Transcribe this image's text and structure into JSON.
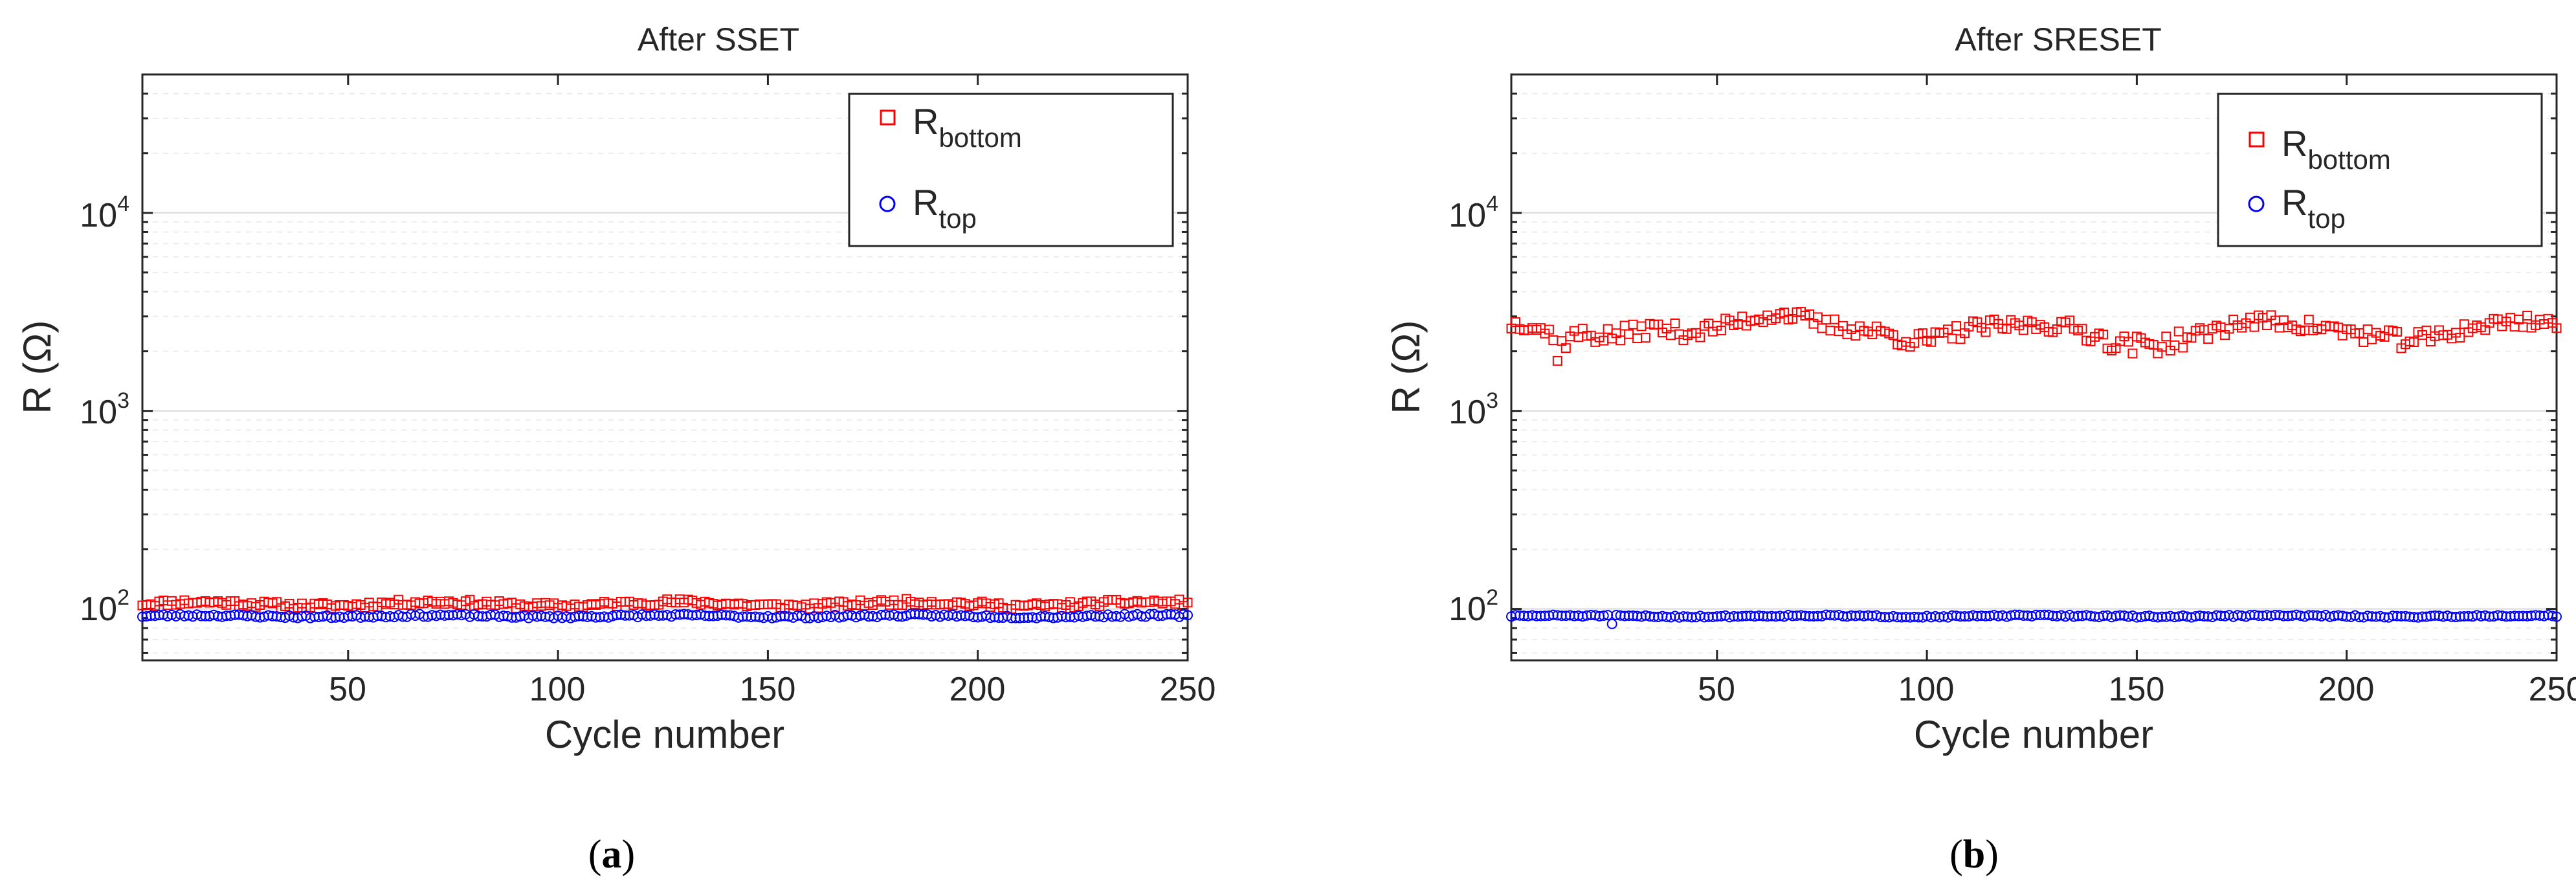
{
  "figure": {
    "panels": [
      {
        "label_open": "(",
        "label": "a",
        "label_close": ")"
      },
      {
        "label_open": "(",
        "label": "b",
        "label_close": ")"
      }
    ]
  },
  "colors": {
    "bottom": "#ff0000",
    "top": "#0000ff",
    "grid": "#d9d9d9",
    "minor_grid": "#ececec",
    "axis": "#262626",
    "text": "#262626"
  },
  "chart_data": [
    {
      "type": "scatter",
      "title": "After SSET",
      "xlabel": "Cycle number",
      "ylabel": "R (Ω)",
      "xscale": "linear",
      "yscale": "log",
      "xlim": [
        1,
        250
      ],
      "ylim": [
        55,
        50000
      ],
      "xticks": [
        50,
        100,
        150,
        200,
        250
      ],
      "xtick_labels": [
        "50",
        "100",
        "150",
        "200",
        "250"
      ],
      "yticks": [
        100,
        1000,
        10000
      ],
      "ytick_bases": [
        "10",
        "10",
        "10"
      ],
      "ytick_exponents": [
        "2",
        "3",
        "4"
      ],
      "grid": true,
      "legend_position": "top-right",
      "series": [
        {
          "name": "R_bottom",
          "legend_main": "R",
          "legend_sub": "bottom",
          "marker": "square",
          "color_key": "bottom",
          "n": 250,
          "base": 106,
          "amplitude": 2.5,
          "noise": 4,
          "seed": 11
        },
        {
          "name": "R_top",
          "legend_main": "R",
          "legend_sub": "top",
          "marker": "circle",
          "color_key": "top",
          "n": 250,
          "base": 92,
          "amplitude": 0.8,
          "noise": 1.5,
          "seed": 23
        }
      ]
    },
    {
      "type": "scatter",
      "title": "After SRESET",
      "xlabel": "Cycle number",
      "ylabel": "R (Ω)",
      "xscale": "linear",
      "yscale": "log",
      "xlim": [
        1,
        250
      ],
      "ylim": [
        55,
        50000
      ],
      "xticks": [
        50,
        100,
        150,
        200,
        250
      ],
      "xtick_labels": [
        "50",
        "100",
        "150",
        "200",
        "250"
      ],
      "yticks": [
        100,
        1000,
        10000
      ],
      "ytick_bases": [
        "10",
        "10",
        "10"
      ],
      "ytick_exponents": [
        "2",
        "3",
        "4"
      ],
      "grid": true,
      "legend_position": "top-right",
      "series": [
        {
          "name": "R_bottom",
          "legend_main": "R",
          "legend_sub": "bottom",
          "marker": "square",
          "color_key": "bottom",
          "n": 250,
          "base": 2550,
          "amplitude": 250,
          "noise": 240,
          "seed": 37,
          "anchors": [
            [
              1,
              2700
            ],
            [
              5,
              2650
            ],
            [
              10,
              2250
            ],
            [
              12,
              1750
            ],
            [
              15,
              2150
            ],
            [
              25,
              2300
            ],
            [
              35,
              2800
            ],
            [
              45,
              2750
            ],
            [
              55,
              2850
            ],
            [
              65,
              2900
            ],
            [
              75,
              2500
            ],
            [
              90,
              2600
            ],
            [
              100,
              2500
            ],
            [
              110,
              2700
            ],
            [
              120,
              2500
            ],
            [
              135,
              2450
            ],
            [
              145,
              2300
            ],
            [
              160,
              2500
            ],
            [
              175,
              2650
            ],
            [
              190,
              2500
            ],
            [
              205,
              2600
            ],
            [
              220,
              2500
            ],
            [
              235,
              2550
            ],
            [
              250,
              2650
            ]
          ]
        },
        {
          "name": "R_top",
          "legend_main": "R",
          "legend_sub": "top",
          "marker": "circle",
          "color_key": "top",
          "n": 250,
          "base": 92,
          "amplitude": 0.5,
          "noise": 1.0,
          "seed": 51,
          "outliers": [
            [
              25,
              84
            ]
          ]
        }
      ]
    }
  ]
}
